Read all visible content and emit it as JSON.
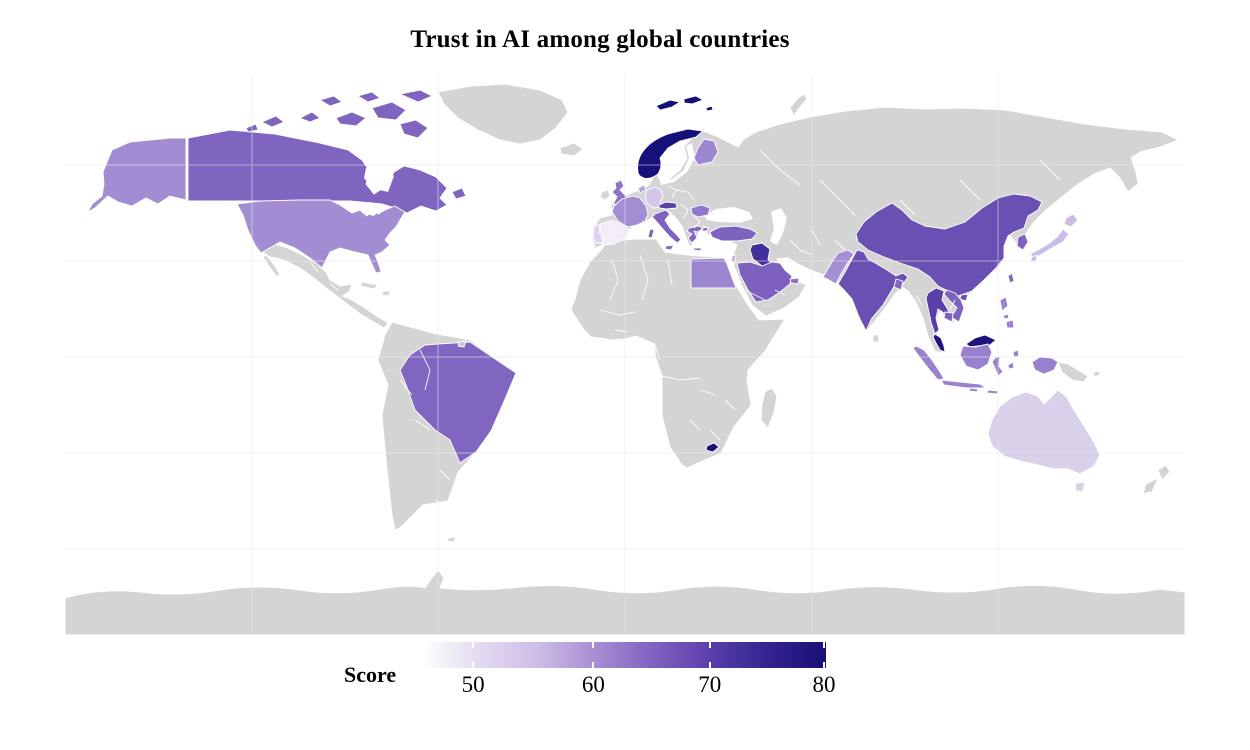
{
  "title": "Trust in AI among global countries",
  "legend": {
    "label": "Score",
    "ticks": [
      {
        "label": "50",
        "pct": 12
      },
      {
        "label": "60",
        "pct": 42
      },
      {
        "label": "70",
        "pct": 71
      },
      {
        "label": "80",
        "pct": 99.5
      }
    ],
    "gradient": [
      {
        "pct": 0,
        "color": "#fdfdfe"
      },
      {
        "pct": 12,
        "color": "#e6ddf2"
      },
      {
        "pct": 28,
        "color": "#cdbde6"
      },
      {
        "pct": 42,
        "color": "#a88fd3"
      },
      {
        "pct": 57,
        "color": "#8161c0"
      },
      {
        "pct": 71,
        "color": "#5b3fab"
      },
      {
        "pct": 86,
        "color": "#33238f"
      },
      {
        "pct": 100,
        "color": "#190f76"
      }
    ]
  },
  "map": {
    "ocean_color": "#ffffff",
    "no_data_color": "#d4d4d4",
    "border_color": "#ffffff",
    "gridline_color": "#e9e9e9"
  },
  "chart_data": {
    "type": "heatmap",
    "subtype": "choropleth-world-map",
    "title": "Trust in AI among global countries",
    "legend_label": "Score",
    "scale": {
      "min": 46,
      "max": 80,
      "low_color": "#fdfdfe",
      "high_color": "#190f76"
    },
    "series": [
      {
        "id": "norway",
        "country": "Norway",
        "score": 80,
        "color": "#15107a"
      },
      {
        "id": "svalbard",
        "country": "Svalbard (Norway)",
        "score": 80,
        "color": "#15107a"
      },
      {
        "id": "malaysia",
        "country": "Malaysia",
        "score": 78,
        "color": "#1d1480"
      },
      {
        "id": "lesotho",
        "country": "Lesotho",
        "score": 79,
        "color": "#190f76"
      },
      {
        "id": "iraq",
        "country": "Iraq",
        "score": 74,
        "color": "#41309c"
      },
      {
        "id": "thailand",
        "country": "Thailand",
        "score": 71,
        "color": "#5a3fa9"
      },
      {
        "id": "austria",
        "country": "Austria",
        "score": 71,
        "color": "#5941a9"
      },
      {
        "id": "china",
        "country": "China",
        "score": 68,
        "color": "#6950b2"
      },
      {
        "id": "india",
        "country": "India",
        "score": 68,
        "color": "#6950b2"
      },
      {
        "id": "saudi-arabia",
        "country": "Saudi Arabia",
        "score": 66,
        "color": "#7e60bf"
      },
      {
        "id": "turkey",
        "country": "Turkey",
        "score": 65,
        "color": "#7d62bf"
      },
      {
        "id": "canada",
        "country": "Canada",
        "score": 65,
        "color": "#7f64c0"
      },
      {
        "id": "brazil",
        "country": "Brazil",
        "score": 65,
        "color": "#8166c1"
      },
      {
        "id": "italy",
        "country": "Italy",
        "score": 64,
        "color": "#7d63c0"
      },
      {
        "id": "south-korea",
        "country": "South Korea",
        "score": 64,
        "color": "#7d63c0"
      },
      {
        "id": "vietnam",
        "country": "Vietnam",
        "score": 64,
        "color": "#7d63c0"
      },
      {
        "id": "cambodia",
        "country": "Cambodia",
        "score": 64,
        "color": "#7d63c0"
      },
      {
        "id": "greece",
        "country": "Greece",
        "score": 64,
        "color": "#8367c1"
      },
      {
        "id": "taiwan",
        "country": "Taiwan",
        "score": 64,
        "color": "#8367c1"
      },
      {
        "id": "bangladesh",
        "country": "Bangladesh",
        "score": 64,
        "color": "#8367c1"
      },
      {
        "id": "uae",
        "country": "United Arab Emirates",
        "score": 63,
        "color": "#8a6cc5"
      },
      {
        "id": "uk",
        "country": "United Kingdom",
        "score": 62,
        "color": "#8d73c8"
      },
      {
        "id": "romania",
        "country": "Romania",
        "score": 61,
        "color": "#8f77c9"
      },
      {
        "id": "indonesia",
        "country": "Indonesia",
        "score": 60,
        "color": "#9a81ce"
      },
      {
        "id": "philippines",
        "country": "Philippines",
        "score": 60,
        "color": "#9b83cf"
      },
      {
        "id": "egypt",
        "country": "Egypt",
        "score": 59,
        "color": "#9d86d0"
      },
      {
        "id": "finland",
        "country": "Finland",
        "score": 59,
        "color": "#9d86d0"
      },
      {
        "id": "france",
        "country": "France",
        "score": 58,
        "color": "#a38dd3"
      },
      {
        "id": "usa",
        "country": "United States",
        "score": 57,
        "color": "#a28dd3"
      },
      {
        "id": "pakistan",
        "country": "Pakistan",
        "score": 57,
        "color": "#a48fd5"
      },
      {
        "id": "netherlands",
        "country": "Netherlands",
        "score": 55,
        "color": "#b9a6dd"
      },
      {
        "id": "israel",
        "country": "Israel",
        "score": 53,
        "color": "#c5b5e3"
      },
      {
        "id": "japan",
        "country": "Japan",
        "score": 53,
        "color": "#cbbce5"
      },
      {
        "id": "germany",
        "country": "Germany",
        "score": 52,
        "color": "#d3c6e9"
      },
      {
        "id": "french-guiana",
        "country": "French Guiana",
        "score": 52,
        "color": "#cfc0e8"
      },
      {
        "id": "australia",
        "country": "Australia",
        "score": 50,
        "color": "#d9d0ea"
      },
      {
        "id": "portugal",
        "country": "Portugal",
        "score": 49,
        "color": "#ddd2ef"
      },
      {
        "id": "spain",
        "country": "Spain",
        "score": 46,
        "color": "#f2edf9"
      }
    ]
  }
}
